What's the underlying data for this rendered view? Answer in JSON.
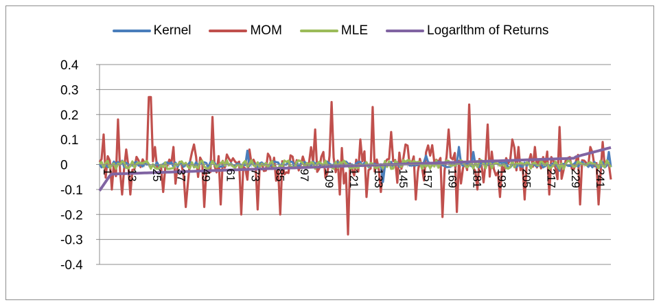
{
  "chart_data": {
    "type": "line",
    "title": "",
    "xlabel": "",
    "ylabel": "",
    "ylim": [
      -0.4,
      0.4
    ],
    "yticks": [
      "0.4",
      "0.3",
      "0.2",
      "0.1",
      "0",
      "-0.1",
      "-0.2",
      "-0.3",
      "-0.4"
    ],
    "x_count": 250,
    "x_tick_labels": [
      "1",
      "13",
      "25",
      "37",
      "49",
      "61",
      "73",
      "85",
      "97",
      "109",
      "121",
      "133",
      "145",
      "157",
      "169",
      "181",
      "193",
      "205",
      "217",
      "229",
      "241"
    ],
    "grid": "horizontal",
    "legend_position": "top",
    "series": [
      {
        "name": "Kernel",
        "color": "#4a7ebb",
        "style": "noise",
        "amplitude": 0.012,
        "spikes": [
          [
            12,
            0.015
          ],
          [
            73,
            0.055
          ],
          [
            139,
            -0.07
          ],
          [
            160,
            0.035
          ],
          [
            176,
            0.07
          ],
          [
            183,
            0.05
          ],
          [
            225,
            -0.025
          ],
          [
            249,
            0.05
          ]
        ]
      },
      {
        "name": "MOM",
        "color": "#c0504d",
        "style": "spiky",
        "amplitude": 0.08,
        "peaks": [
          [
            3,
            0.12
          ],
          [
            7,
            -0.1
          ],
          [
            10,
            0.18
          ],
          [
            12,
            -0.12
          ],
          [
            14,
            0.06
          ],
          [
            16,
            -0.12
          ],
          [
            25,
            0.27
          ],
          [
            26,
            0.27
          ],
          [
            28,
            0.07
          ],
          [
            32,
            -0.11
          ],
          [
            37,
            0.07
          ],
          [
            43,
            -0.17
          ],
          [
            47,
            0.08
          ],
          [
            52,
            -0.17
          ],
          [
            56,
            0.19
          ],
          [
            60,
            -0.16
          ],
          [
            63,
            0.04
          ],
          [
            70,
            -0.2
          ],
          [
            74,
            0.06
          ],
          [
            78,
            -0.18
          ],
          [
            84,
            0.03
          ],
          [
            89,
            -0.2
          ],
          [
            106,
            0.14
          ],
          [
            110,
            0.05
          ],
          [
            114,
            0.25
          ],
          [
            118,
            -0.12
          ],
          [
            122,
            -0.28
          ],
          [
            128,
            0.1
          ],
          [
            131,
            -0.13
          ],
          [
            134,
            0.23
          ],
          [
            138,
            -0.11
          ],
          [
            143,
            0.13
          ],
          [
            150,
            0.08
          ],
          [
            155,
            -0.14
          ],
          [
            168,
            -0.21
          ],
          [
            171,
            0.14
          ],
          [
            175,
            -0.19
          ],
          [
            181,
            0.24
          ],
          [
            185,
            -0.1
          ],
          [
            190,
            0.16
          ],
          [
            196,
            -0.13
          ],
          [
            202,
            0.1
          ],
          [
            205,
            0.07
          ],
          [
            208,
            -0.14
          ],
          [
            213,
            0.07
          ],
          [
            220,
            -0.12
          ],
          [
            225,
            0.15
          ],
          [
            235,
            -0.16
          ],
          [
            240,
            0.07
          ],
          [
            244,
            -0.16
          ],
          [
            246,
            0.09
          ],
          [
            250,
            -0.06
          ]
        ]
      },
      {
        "name": "MLE",
        "color": "#9bbb59",
        "style": "noise",
        "amplitude": 0.018
      },
      {
        "name": "Logarlthm of Returns",
        "color": "#8064a2",
        "style": "sorted",
        "start": -0.105,
        "end": 0.068
      }
    ]
  }
}
